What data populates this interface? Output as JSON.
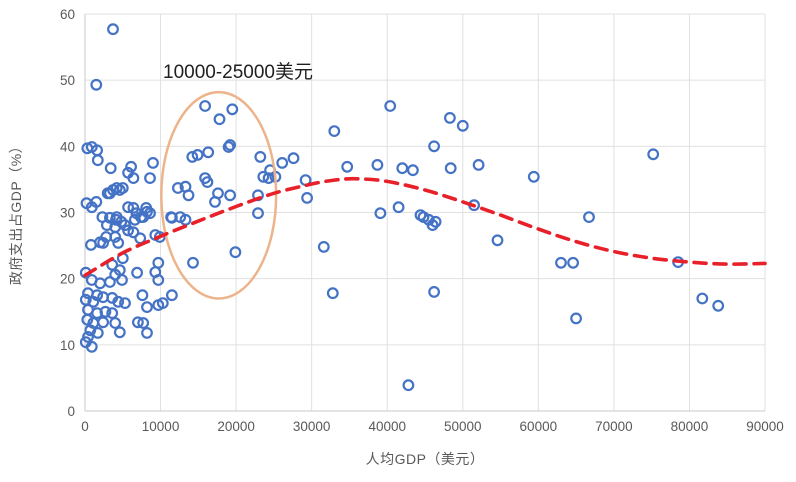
{
  "chart_data": {
    "type": "scatter",
    "title": "",
    "xlabel": "人均GDP（美元）",
    "ylabel": "政府支出占GDP（%）",
    "xlim": [
      0,
      90000
    ],
    "ylim": [
      0,
      60
    ],
    "xticks": [
      0,
      10000,
      20000,
      30000,
      40000,
      50000,
      60000,
      70000,
      80000,
      90000
    ],
    "yticks": [
      0,
      10,
      20,
      30,
      40,
      50,
      60
    ],
    "grid": true,
    "legend": "none",
    "annotation": {
      "label": "10000-25000美元",
      "ellipse": {
        "cx": 17700,
        "cy": 32.6,
        "rx": 7600,
        "ry": 15.6,
        "color": "#edb48c"
      }
    },
    "series": [
      {
        "name": "country-observations",
        "type": "scatter",
        "marker": "open-circle",
        "color": "#4472c4",
        "points": [
          [
            3700,
            57.7
          ],
          [
            1500,
            49.3
          ],
          [
            15900,
            46.1
          ],
          [
            19500,
            45.6
          ],
          [
            17800,
            44.1
          ],
          [
            19200,
            40.2
          ],
          [
            900,
            39.9
          ],
          [
            300,
            39.7
          ],
          [
            1600,
            39.4
          ],
          [
            1700,
            37.9
          ],
          [
            3400,
            36.7
          ],
          [
            6100,
            36.9
          ],
          [
            9000,
            37.5
          ],
          [
            5700,
            36.0
          ],
          [
            6400,
            35.2
          ],
          [
            8600,
            35.2
          ],
          [
            4200,
            33.7
          ],
          [
            5000,
            33.7
          ],
          [
            3300,
            32.9
          ],
          [
            3000,
            32.9
          ],
          [
            4600,
            33.4
          ],
          [
            3700,
            33.4
          ],
          [
            1500,
            31.6
          ],
          [
            200,
            31.4
          ],
          [
            5700,
            30.8
          ],
          [
            6400,
            30.7
          ],
          [
            6800,
            29.9
          ],
          [
            7400,
            29.3
          ],
          [
            8100,
            30.7
          ],
          [
            8600,
            29.9
          ],
          [
            900,
            30.8
          ],
          [
            2300,
            29.3
          ],
          [
            2900,
            28.1
          ],
          [
            4000,
            27.8
          ],
          [
            4200,
            29.3
          ],
          [
            5300,
            28.1
          ],
          [
            6600,
            28.9
          ],
          [
            7700,
            29.3
          ],
          [
            8200,
            30.1
          ],
          [
            3300,
            29.2
          ],
          [
            4100,
            28.9
          ],
          [
            4800,
            28.6
          ],
          [
            5700,
            27.3
          ],
          [
            6400,
            27.0
          ],
          [
            4000,
            26.3
          ],
          [
            2800,
            26.3
          ],
          [
            2000,
            25.5
          ],
          [
            800,
            25.1
          ],
          [
            4400,
            25.4
          ],
          [
            2400,
            25.4
          ],
          [
            9300,
            26.6
          ],
          [
            9900,
            26.3
          ],
          [
            7300,
            26.1
          ],
          [
            11400,
            29.3
          ],
          [
            12600,
            29.3
          ],
          [
            13300,
            33.9
          ],
          [
            13700,
            32.6
          ],
          [
            12300,
            33.7
          ],
          [
            13300,
            28.9
          ],
          [
            11500,
            29.2
          ],
          [
            14200,
            38.4
          ],
          [
            14900,
            38.7
          ],
          [
            16300,
            39.1
          ],
          [
            19000,
            39.9
          ],
          [
            15900,
            35.2
          ],
          [
            16200,
            34.6
          ],
          [
            17600,
            32.9
          ],
          [
            19200,
            32.6
          ],
          [
            17200,
            31.6
          ],
          [
            19900,
            24.0
          ],
          [
            5000,
            23.1
          ],
          [
            3600,
            22.1
          ],
          [
            4600,
            21.3
          ],
          [
            9700,
            22.4
          ],
          [
            14300,
            22.4
          ],
          [
            9300,
            21.0
          ],
          [
            6900,
            20.9
          ],
          [
            4000,
            20.6
          ],
          [
            100,
            20.9
          ],
          [
            23200,
            38.4
          ],
          [
            26100,
            37.5
          ],
          [
            27600,
            38.2
          ],
          [
            24500,
            36.4
          ],
          [
            23600,
            35.4
          ],
          [
            24300,
            35.2
          ],
          [
            25200,
            35.4
          ],
          [
            29200,
            34.9
          ],
          [
            29400,
            32.2
          ],
          [
            22900,
            32.6
          ],
          [
            22900,
            29.9
          ],
          [
            34700,
            36.9
          ],
          [
            38700,
            37.2
          ],
          [
            40400,
            46.1
          ],
          [
            33000,
            42.3
          ],
          [
            42000,
            36.7
          ],
          [
            43400,
            36.4
          ],
          [
            41500,
            30.8
          ],
          [
            39100,
            29.9
          ],
          [
            44400,
            29.6
          ],
          [
            44800,
            29.3
          ],
          [
            45500,
            28.9
          ],
          [
            46000,
            28.1
          ],
          [
            31600,
            24.8
          ],
          [
            48300,
            44.3
          ],
          [
            50000,
            43.1
          ],
          [
            46200,
            40.0
          ],
          [
            48400,
            36.7
          ],
          [
            52100,
            37.2
          ],
          [
            59400,
            35.4
          ],
          [
            51500,
            31.1
          ],
          [
            46400,
            28.6
          ],
          [
            54600,
            25.8
          ],
          [
            66700,
            29.3
          ],
          [
            63000,
            22.4
          ],
          [
            64600,
            22.4
          ],
          [
            75200,
            38.8
          ],
          [
            78500,
            22.5
          ],
          [
            900,
            19.8
          ],
          [
            2000,
            19.3
          ],
          [
            3300,
            19.5
          ],
          [
            4900,
            19.8
          ],
          [
            9700,
            19.8
          ],
          [
            400,
            17.8
          ],
          [
            1600,
            17.5
          ],
          [
            2400,
            17.2
          ],
          [
            100,
            16.8
          ],
          [
            1100,
            16.5
          ],
          [
            3600,
            17.1
          ],
          [
            4400,
            16.5
          ],
          [
            5300,
            16.3
          ],
          [
            7600,
            17.5
          ],
          [
            8200,
            15.7
          ],
          [
            9700,
            16.0
          ],
          [
            11500,
            17.5
          ],
          [
            10300,
            16.3
          ],
          [
            400,
            15.3
          ],
          [
            1600,
            14.8
          ],
          [
            2700,
            15.0
          ],
          [
            3600,
            14.8
          ],
          [
            300,
            13.8
          ],
          [
            1100,
            13.3
          ],
          [
            2400,
            13.4
          ],
          [
            4000,
            13.3
          ],
          [
            700,
            12.2
          ],
          [
            1700,
            11.8
          ],
          [
            4600,
            11.9
          ],
          [
            7000,
            13.4
          ],
          [
            7700,
            13.3
          ],
          [
            8200,
            11.8
          ],
          [
            100,
            10.4
          ],
          [
            900,
            9.7
          ],
          [
            400,
            11.2
          ],
          [
            32800,
            17.8
          ],
          [
            46200,
            18.0
          ],
          [
            42800,
            3.9
          ],
          [
            65000,
            14.0
          ],
          [
            81700,
            17.0
          ],
          [
            83800,
            15.9
          ]
        ]
      },
      {
        "name": "trend-line",
        "type": "line",
        "style": "dashed",
        "color": "#e8202a",
        "points": [
          [
            0,
            20.5
          ],
          [
            5000,
            23.9
          ],
          [
            10000,
            26.4
          ],
          [
            15000,
            28.7
          ],
          [
            20000,
            30.9
          ],
          [
            25000,
            32.9
          ],
          [
            30000,
            34.3
          ],
          [
            33000,
            34.9
          ],
          [
            36000,
            35.1
          ],
          [
            40000,
            34.7
          ],
          [
            45000,
            33.4
          ],
          [
            50000,
            31.6
          ],
          [
            55000,
            29.6
          ],
          [
            60000,
            27.5
          ],
          [
            65000,
            25.6
          ],
          [
            70000,
            24.1
          ],
          [
            75000,
            23.1
          ],
          [
            80000,
            22.5
          ],
          [
            85000,
            22.2
          ],
          [
            90000,
            22.3
          ]
        ]
      }
    ],
    "colors": {
      "marker": "#4472c4",
      "trend": "#e8202a",
      "ellipse": "#edb48c",
      "grid": "#e0e0e0",
      "axis": "#c9c9c9",
      "tick_text": "#595959"
    }
  }
}
